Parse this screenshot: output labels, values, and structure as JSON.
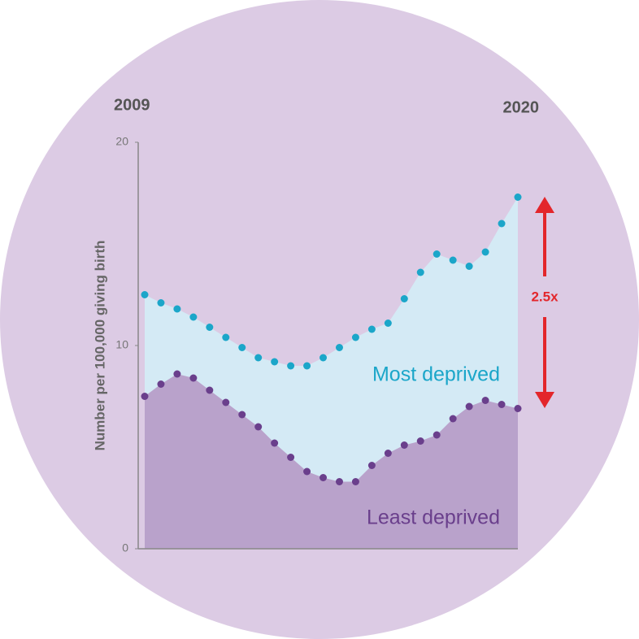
{
  "chart_data": {
    "type": "area",
    "y_label": "Number per 100,000 giving birth",
    "categories": [
      "2009",
      null,
      null,
      null,
      null,
      null,
      null,
      null,
      null,
      null,
      null,
      null,
      null,
      null,
      null,
      null,
      null,
      null,
      null,
      null,
      null,
      null,
      null,
      "2020"
    ],
    "series": [
      {
        "name": "Most deprived",
        "color": "#1ba6c9",
        "fill": "#d4eaf5",
        "values": [
          12.5,
          12.1,
          11.8,
          11.4,
          10.9,
          10.4,
          9.9,
          9.4,
          9.2,
          9.0,
          9.0,
          9.4,
          9.9,
          10.4,
          10.8,
          11.1,
          12.3,
          13.6,
          14.5,
          14.2,
          13.9,
          14.6,
          16.0,
          17.3
        ]
      },
      {
        "name": "Least deprived",
        "color": "#6a3f8c",
        "fill": "#b9a2cb",
        "values": [
          7.5,
          8.1,
          8.6,
          8.4,
          7.8,
          7.2,
          6.6,
          6.0,
          5.2,
          4.5,
          3.8,
          3.5,
          3.3,
          3.3,
          4.1,
          4.7,
          5.1,
          5.3,
          5.6,
          6.4,
          7.0,
          7.3,
          7.1,
          6.9
        ]
      }
    ],
    "annotation": "2.5x",
    "ylim": [
      0,
      20
    ],
    "yticks": [
      0,
      10,
      20
    ]
  }
}
